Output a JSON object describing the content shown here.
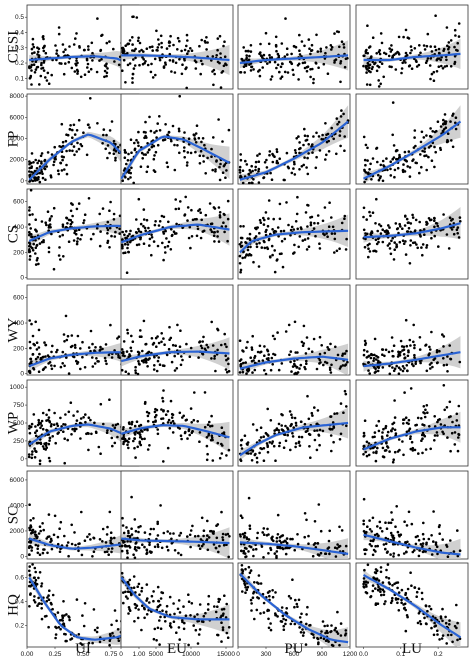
{
  "chart_data": {
    "type": "scatter",
    "smoother": "loess with 95% confidence band",
    "colors": {
      "points": "#000000",
      "fit": "#2a63d4",
      "band": "#c8c8c8",
      "frame": "#333333"
    },
    "columns": [
      {
        "name": "UI",
        "xlim": [
          0,
          1
        ],
        "ticks": [
          "0.00",
          "0.25",
          "0.50",
          "0.75",
          "1.00"
        ],
        "tickvals": [
          0,
          0.25,
          0.5,
          0.75,
          1.0
        ]
      },
      {
        "name": "EU",
        "xlim": [
          0,
          16000
        ],
        "ticks": [
          "0",
          "5000",
          "10000",
          "15000"
        ],
        "tickvals": [
          0,
          5000,
          10000,
          15000
        ]
      },
      {
        "name": "PU",
        "xlim": [
          0,
          1200
        ],
        "ticks": [
          "0",
          "300",
          "600",
          "900",
          "1200"
        ],
        "tickvals": [
          0,
          300,
          600,
          900,
          1200
        ]
      },
      {
        "name": "LU",
        "xlim": [
          -0.02,
          0.28
        ],
        "ticks": [
          "0.0",
          "0.1",
          "0.2"
        ],
        "tickvals": [
          0,
          0.1,
          0.2
        ]
      }
    ],
    "rows": [
      {
        "name": "CESI",
        "ylim": [
          0.03,
          0.58
        ],
        "ticks": [
          "0.1",
          "0.2",
          "0.3",
          "0.4",
          "0.5"
        ],
        "tickvals": [
          0.1,
          0.2,
          0.3,
          0.4,
          0.5
        ],
        "fits": [
          [
            [
              0.02,
              0.22
            ],
            [
              0.2,
              0.23
            ],
            [
              0.4,
              0.24
            ],
            [
              0.6,
              0.245
            ],
            [
              0.8,
              0.23
            ],
            [
              1.0,
              0.17
            ]
          ],
          [
            [
              50,
              0.25
            ],
            [
              3000,
              0.25
            ],
            [
              7000,
              0.245
            ],
            [
              11000,
              0.235
            ],
            [
              15500,
              0.22
            ]
          ],
          [
            [
              20,
              0.2
            ],
            [
              300,
              0.22
            ],
            [
              600,
              0.23
            ],
            [
              900,
              0.24
            ],
            [
              1180,
              0.25
            ]
          ],
          [
            [
              0.0,
              0.22
            ],
            [
              0.07,
              0.22
            ],
            [
              0.14,
              0.24
            ],
            [
              0.21,
              0.25
            ],
            [
              0.26,
              0.26
            ]
          ]
        ]
      },
      {
        "name": "FP",
        "ylim": [
          -300,
          8200
        ],
        "ticks": [
          "0",
          "2000",
          "4000",
          "6000",
          "8000"
        ],
        "tickvals": [
          0,
          2000,
          4000,
          6000,
          8000
        ],
        "fits": [
          [
            [
              0.02,
              100
            ],
            [
              0.2,
              2000
            ],
            [
              0.4,
              3700
            ],
            [
              0.55,
              4400
            ],
            [
              0.75,
              3600
            ],
            [
              1.0,
              900
            ]
          ],
          [
            [
              50,
              200
            ],
            [
              2500,
              2800
            ],
            [
              6000,
              4200
            ],
            [
              9000,
              3900
            ],
            [
              12000,
              2900
            ],
            [
              15500,
              1700
            ]
          ],
          [
            [
              20,
              100
            ],
            [
              300,
              800
            ],
            [
              600,
              2100
            ],
            [
              900,
              3600
            ],
            [
              1180,
              5600
            ]
          ],
          [
            [
              0.0,
              200
            ],
            [
              0.07,
              1400
            ],
            [
              0.14,
              2800
            ],
            [
              0.21,
              4300
            ],
            [
              0.26,
              5600
            ]
          ]
        ]
      },
      {
        "name": "CS",
        "ylim": [
          -10,
          700
        ],
        "ticks": [
          "0",
          "200",
          "400",
          "600"
        ],
        "tickvals": [
          0,
          200,
          400,
          600
        ],
        "fits": [
          [
            [
              0.02,
              290
            ],
            [
              0.2,
              360
            ],
            [
              0.4,
              390
            ],
            [
              0.6,
              405
            ],
            [
              0.8,
              410
            ],
            [
              1.0,
              400
            ]
          ],
          [
            [
              50,
              280
            ],
            [
              3000,
              340
            ],
            [
              7000,
              400
            ],
            [
              11000,
              420
            ],
            [
              15500,
              380
            ]
          ],
          [
            [
              20,
              200
            ],
            [
              150,
              290
            ],
            [
              400,
              340
            ],
            [
              700,
              360
            ],
            [
              1180,
              370
            ]
          ],
          [
            [
              0.0,
              320
            ],
            [
              0.07,
              330
            ],
            [
              0.14,
              350
            ],
            [
              0.21,
              390
            ],
            [
              0.26,
              430
            ]
          ]
        ]
      },
      {
        "name": "WY",
        "ylim": [
          -10,
          700
        ],
        "ticks": [
          "0",
          "200",
          "400",
          "600"
        ],
        "tickvals": [
          0,
          200,
          400,
          600
        ],
        "fits": [
          [
            [
              0.02,
              60
            ],
            [
              0.2,
              120
            ],
            [
              0.4,
              150
            ],
            [
              0.6,
              165
            ],
            [
              0.8,
              170
            ],
            [
              1.0,
              160
            ]
          ],
          [
            [
              50,
              100
            ],
            [
              3000,
              140
            ],
            [
              7000,
              170
            ],
            [
              11000,
              175
            ],
            [
              15500,
              160
            ]
          ],
          [
            [
              20,
              40
            ],
            [
              300,
              90
            ],
            [
              600,
              120
            ],
            [
              900,
              135
            ],
            [
              1180,
              110
            ]
          ],
          [
            [
              0.0,
              60
            ],
            [
              0.07,
              80
            ],
            [
              0.14,
              110
            ],
            [
              0.21,
              145
            ],
            [
              0.26,
              170
            ]
          ]
        ]
      },
      {
        "name": "WP",
        "ylim": [
          -100,
          1100
        ],
        "ticks": [
          "0",
          "250",
          "500",
          "750",
          "1000"
        ],
        "tickvals": [
          0,
          250,
          500,
          750,
          1000
        ],
        "fits": [
          [
            [
              0.02,
              200
            ],
            [
              0.2,
              380
            ],
            [
              0.4,
              460
            ],
            [
              0.55,
              480
            ],
            [
              0.75,
              420
            ],
            [
              1.0,
              250
            ]
          ],
          [
            [
              50,
              350
            ],
            [
              3000,
              430
            ],
            [
              6000,
              470
            ],
            [
              9000,
              460
            ],
            [
              12000,
              390
            ],
            [
              15500,
              300
            ]
          ],
          [
            [
              20,
              50
            ],
            [
              200,
              200
            ],
            [
              400,
              330
            ],
            [
              700,
              440
            ],
            [
              1180,
              500
            ]
          ],
          [
            [
              0.0,
              130
            ],
            [
              0.07,
              280
            ],
            [
              0.14,
              380
            ],
            [
              0.21,
              440
            ],
            [
              0.26,
              440
            ]
          ]
        ]
      },
      {
        "name": "SC",
        "ylim": [
          -200,
          6700
        ],
        "ticks": [
          "0",
          "2000",
          "4000",
          "6000"
        ],
        "tickvals": [
          0,
          2000,
          4000,
          6000
        ],
        "fits": [
          [
            [
              0.02,
              1400
            ],
            [
              0.2,
              900
            ],
            [
              0.4,
              600
            ],
            [
              0.6,
              700
            ],
            [
              0.8,
              900
            ],
            [
              1.0,
              1200
            ]
          ],
          [
            [
              50,
              1400
            ],
            [
              3000,
              1250
            ],
            [
              7000,
              1200
            ],
            [
              11000,
              1150
            ],
            [
              15500,
              1050
            ]
          ],
          [
            [
              20,
              1100
            ],
            [
              300,
              1000
            ],
            [
              600,
              800
            ],
            [
              900,
              500
            ],
            [
              1180,
              200
            ]
          ],
          [
            [
              0.0,
              1700
            ],
            [
              0.07,
              1200
            ],
            [
              0.14,
              700
            ],
            [
              0.21,
              300
            ],
            [
              0.26,
              150
            ]
          ]
        ]
      },
      {
        "name": "HQ",
        "ylim": [
          0.02,
          0.72
        ],
        "ticks": [
          "0.2",
          "0.4",
          "0.6"
        ],
        "tickvals": [
          0.2,
          0.4,
          0.6
        ],
        "fits": [
          [
            [
              0.02,
              0.6
            ],
            [
              0.15,
              0.4
            ],
            [
              0.3,
              0.2
            ],
            [
              0.45,
              0.1
            ],
            [
              0.6,
              0.08
            ],
            [
              0.8,
              0.1
            ],
            [
              1.0,
              0.17
            ]
          ],
          [
            [
              50,
              0.6
            ],
            [
              2000,
              0.45
            ],
            [
              4000,
              0.34
            ],
            [
              7000,
              0.27
            ],
            [
              11000,
              0.25
            ],
            [
              15500,
              0.25
            ]
          ],
          [
            [
              20,
              0.63
            ],
            [
              250,
              0.45
            ],
            [
              500,
              0.29
            ],
            [
              750,
              0.17
            ],
            [
              1000,
              0.08
            ],
            [
              1180,
              0.06
            ]
          ],
          [
            [
              0.0,
              0.62
            ],
            [
              0.07,
              0.5
            ],
            [
              0.14,
              0.36
            ],
            [
              0.21,
              0.2
            ],
            [
              0.26,
              0.1
            ]
          ]
        ]
      }
    ]
  }
}
